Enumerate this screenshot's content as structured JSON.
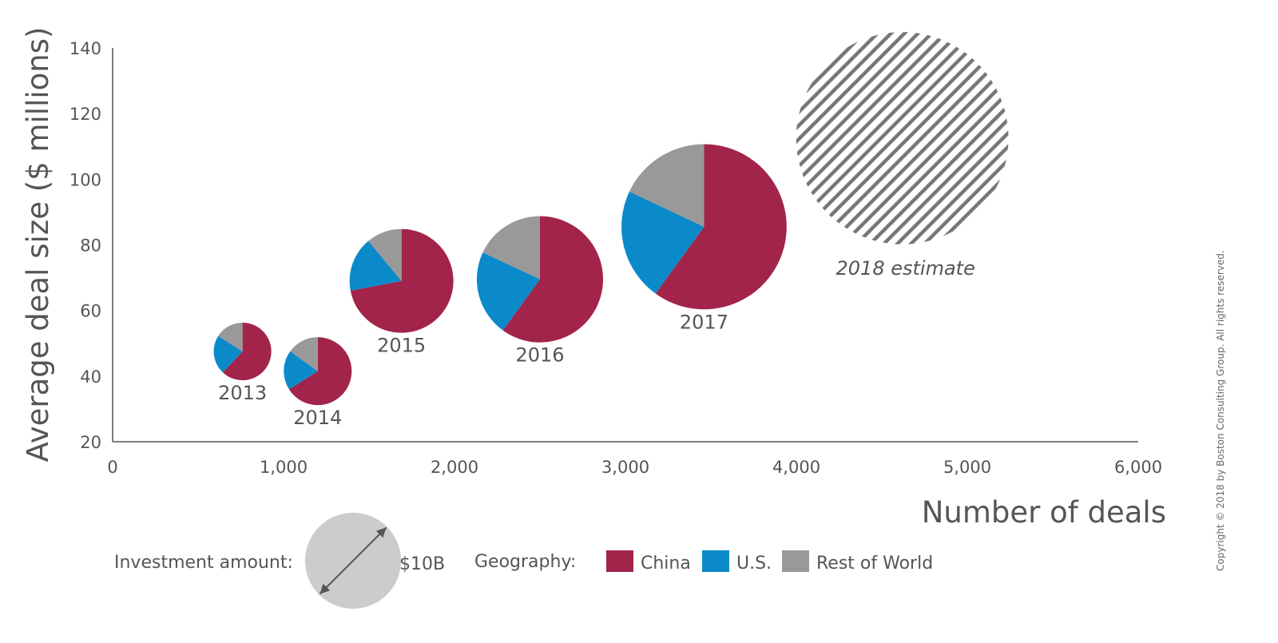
{
  "chart_data": {
    "type": "bubble-pie",
    "title": "",
    "xlabel": "Number of deals",
    "ylabel": "Average deal size ($ millions)",
    "xlim": [
      0,
      6000
    ],
    "ylim": [
      20,
      140
    ],
    "xticks": [
      0,
      1000,
      2000,
      3000,
      4000,
      5000,
      6000
    ],
    "xtick_labels": [
      "0",
      "1,000",
      "2,000",
      "3,000",
      "4,000",
      "5,000",
      "6,000"
    ],
    "yticks": [
      20,
      40,
      60,
      80,
      100,
      120,
      140
    ],
    "ytick_labels": [
      "20",
      "40",
      "60",
      "80",
      "100",
      "120",
      "140"
    ],
    "grid": false,
    "series_names": [
      "China",
      "U.S.",
      "Rest of World"
    ],
    "colors": {
      "China": "#A3244A",
      "U.S.": "#0A8AC8",
      "Rest of World": "#999999",
      "estimate": "#777777",
      "axis": "#555555"
    },
    "points": [
      {
        "label": "2013",
        "deals": 760,
        "avg_deal_size": 47.5,
        "investment_billion": 3.6,
        "shares": {
          "China": 0.62,
          "U.S.": 0.22,
          "Rest of World": 0.16
        }
      },
      {
        "label": "2014",
        "deals": 1200,
        "avg_deal_size": 41.5,
        "investment_billion": 5.0,
        "shares": {
          "China": 0.66,
          "U.S.": 0.19,
          "Rest of World": 0.15
        }
      },
      {
        "label": "2015",
        "deals": 1690,
        "avg_deal_size": 69,
        "investment_billion": 11.7,
        "shares": {
          "China": 0.72,
          "U.S.": 0.17,
          "Rest of World": 0.11
        }
      },
      {
        "label": "2016",
        "deals": 2500,
        "avg_deal_size": 69.5,
        "investment_billion": 17.3,
        "shares": {
          "China": 0.6,
          "U.S.": 0.22,
          "Rest of World": 0.18
        }
      },
      {
        "label": "2017",
        "deals": 3460,
        "avg_deal_size": 85.5,
        "investment_billion": 29.6,
        "shares": {
          "China": 0.6,
          "U.S.": 0.22,
          "Rest of World": 0.18
        }
      }
    ],
    "estimate": {
      "label": "2018 estimate",
      "deals": 4620,
      "avg_deal_size": 112.5,
      "investment_billion": 48.9
    },
    "size_legend": {
      "title": "Investment amount:",
      "value_label": "$10B",
      "investment_billion": 10
    },
    "color_legend": {
      "title": "Geography:",
      "entries": [
        "China",
        "U.S.",
        "Rest of World"
      ]
    }
  },
  "copyright": "Copyright © 2018 by Boston Consulting Group. All rights reserved."
}
